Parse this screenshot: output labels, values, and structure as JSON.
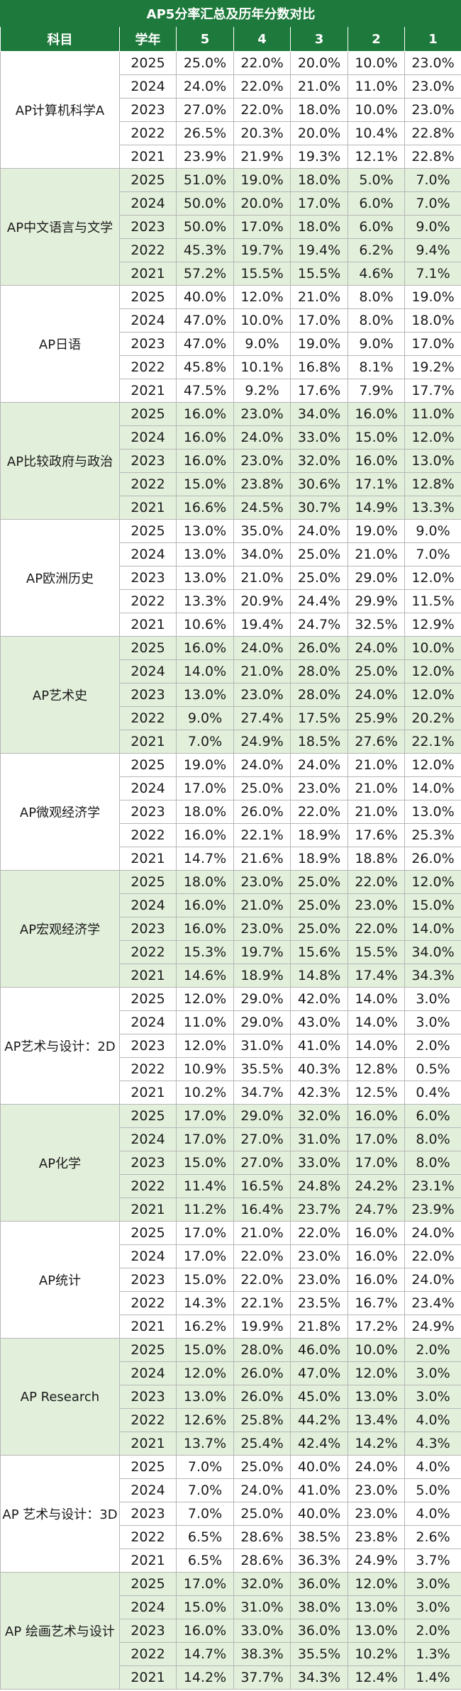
{
  "title": "AP5分率汇总及历年分数对比",
  "headers": [
    "科目",
    "学年",
    "5",
    "4",
    "3",
    "2",
    "1"
  ],
  "colors": {
    "header_bg": "#1e7a3c",
    "header_text": "#ffffff",
    "band_green": "#e2efda",
    "band_white": "#ffffff",
    "grid": "#b7b7b7"
  },
  "subjects": [
    {
      "name": "AP计算机科学A",
      "rows": [
        [
          "2025",
          "25.0%",
          "22.0%",
          "20.0%",
          "10.0%",
          "23.0%"
        ],
        [
          "2024",
          "24.0%",
          "22.0%",
          "21.0%",
          "11.0%",
          "23.0%"
        ],
        [
          "2023",
          "27.0%",
          "22.0%",
          "18.0%",
          "10.0%",
          "23.0%"
        ],
        [
          "2022",
          "26.5%",
          "20.3%",
          "20.0%",
          "10.4%",
          "22.8%"
        ],
        [
          "2021",
          "23.9%",
          "21.9%",
          "19.3%",
          "12.1%",
          "22.8%"
        ]
      ]
    },
    {
      "name": "AP中文语言与文学",
      "rows": [
        [
          "2025",
          "51.0%",
          "19.0%",
          "18.0%",
          "5.0%",
          "7.0%"
        ],
        [
          "2024",
          "50.0%",
          "20.0%",
          "17.0%",
          "6.0%",
          "7.0%"
        ],
        [
          "2023",
          "50.0%",
          "17.0%",
          "18.0%",
          "6.0%",
          "9.0%"
        ],
        [
          "2022",
          "45.3%",
          "19.7%",
          "19.4%",
          "6.2%",
          "9.4%"
        ],
        [
          "2021",
          "57.2%",
          "15.5%",
          "15.5%",
          "4.6%",
          "7.1%"
        ]
      ]
    },
    {
      "name": "AP日语",
      "rows": [
        [
          "2025",
          "40.0%",
          "12.0%",
          "21.0%",
          "8.0%",
          "19.0%"
        ],
        [
          "2024",
          "47.0%",
          "10.0%",
          "17.0%",
          "8.0%",
          "18.0%"
        ],
        [
          "2023",
          "47.0%",
          "9.0%",
          "19.0%",
          "9.0%",
          "17.0%"
        ],
        [
          "2022",
          "45.8%",
          "10.1%",
          "16.8%",
          "8.1%",
          "19.2%"
        ],
        [
          "2021",
          "47.5%",
          "9.2%",
          "17.6%",
          "7.9%",
          "17.7%"
        ]
      ]
    },
    {
      "name": "AP比较政府与政治",
      "rows": [
        [
          "2025",
          "16.0%",
          "23.0%",
          "34.0%",
          "16.0%",
          "11.0%"
        ],
        [
          "2024",
          "16.0%",
          "24.0%",
          "33.0%",
          "15.0%",
          "12.0%"
        ],
        [
          "2023",
          "16.0%",
          "23.0%",
          "32.0%",
          "16.0%",
          "13.0%"
        ],
        [
          "2022",
          "15.0%",
          "23.8%",
          "30.6%",
          "17.1%",
          "12.8%"
        ],
        [
          "2021",
          "16.6%",
          "24.5%",
          "30.7%",
          "14.9%",
          "13.3%"
        ]
      ]
    },
    {
      "name": "AP欧洲历史",
      "rows": [
        [
          "2025",
          "13.0%",
          "35.0%",
          "24.0%",
          "19.0%",
          "9.0%"
        ],
        [
          "2024",
          "13.0%",
          "34.0%",
          "25.0%",
          "21.0%",
          "7.0%"
        ],
        [
          "2023",
          "13.0%",
          "21.0%",
          "25.0%",
          "29.0%",
          "12.0%"
        ],
        [
          "2022",
          "13.3%",
          "20.9%",
          "24.4%",
          "29.9%",
          "11.5%"
        ],
        [
          "2021",
          "10.6%",
          "19.4%",
          "24.7%",
          "32.5%",
          "12.9%"
        ]
      ]
    },
    {
      "name": "AP艺术史",
      "rows": [
        [
          "2025",
          "16.0%",
          "24.0%",
          "26.0%",
          "24.0%",
          "10.0%"
        ],
        [
          "2024",
          "14.0%",
          "21.0%",
          "28.0%",
          "25.0%",
          "12.0%"
        ],
        [
          "2023",
          "13.0%",
          "23.0%",
          "28.0%",
          "24.0%",
          "12.0%"
        ],
        [
          "2022",
          "9.0%",
          "27.4%",
          "17.5%",
          "25.9%",
          "20.2%"
        ],
        [
          "2021",
          "7.0%",
          "24.9%",
          "18.5%",
          "27.6%",
          "22.1%"
        ]
      ]
    },
    {
      "name": "AP微观经济学",
      "rows": [
        [
          "2025",
          "19.0%",
          "24.0%",
          "24.0%",
          "21.0%",
          "12.0%"
        ],
        [
          "2024",
          "17.0%",
          "25.0%",
          "23.0%",
          "21.0%",
          "14.0%"
        ],
        [
          "2023",
          "18.0%",
          "26.0%",
          "22.0%",
          "21.0%",
          "13.0%"
        ],
        [
          "2022",
          "16.0%",
          "22.1%",
          "18.9%",
          "17.6%",
          "25.3%"
        ],
        [
          "2021",
          "14.7%",
          "21.6%",
          "18.9%",
          "18.8%",
          "26.0%"
        ]
      ]
    },
    {
      "name": "AP宏观经济学",
      "rows": [
        [
          "2025",
          "18.0%",
          "23.0%",
          "25.0%",
          "22.0%",
          "12.0%"
        ],
        [
          "2024",
          "16.0%",
          "21.0%",
          "25.0%",
          "23.0%",
          "15.0%"
        ],
        [
          "2023",
          "16.0%",
          "23.0%",
          "25.0%",
          "22.0%",
          "14.0%"
        ],
        [
          "2022",
          "15.3%",
          "19.7%",
          "15.6%",
          "15.5%",
          "34.0%"
        ],
        [
          "2021",
          "14.6%",
          "18.9%",
          "14.8%",
          "17.4%",
          "34.3%"
        ]
      ]
    },
    {
      "name": "AP艺术与设计：2D",
      "rows": [
        [
          "2025",
          "12.0%",
          "29.0%",
          "42.0%",
          "14.0%",
          "3.0%"
        ],
        [
          "2024",
          "11.0%",
          "29.0%",
          "43.0%",
          "14.0%",
          "3.0%"
        ],
        [
          "2023",
          "12.0%",
          "31.0%",
          "41.0%",
          "14.0%",
          "2.0%"
        ],
        [
          "2022",
          "10.9%",
          "35.5%",
          "40.3%",
          "12.8%",
          "0.5%"
        ],
        [
          "2021",
          "10.2%",
          "34.7%",
          "42.3%",
          "12.5%",
          "0.4%"
        ]
      ]
    },
    {
      "name": "AP化学",
      "rows": [
        [
          "2025",
          "17.0%",
          "29.0%",
          "32.0%",
          "16.0%",
          "6.0%"
        ],
        [
          "2024",
          "17.0%",
          "27.0%",
          "31.0%",
          "17.0%",
          "8.0%"
        ],
        [
          "2023",
          "15.0%",
          "27.0%",
          "33.0%",
          "17.0%",
          "8.0%"
        ],
        [
          "2022",
          "11.4%",
          "16.5%",
          "24.8%",
          "24.2%",
          "23.1%"
        ],
        [
          "2021",
          "11.2%",
          "16.4%",
          "23.7%",
          "24.7%",
          "23.9%"
        ]
      ]
    },
    {
      "name": "AP统计",
      "rows": [
        [
          "2025",
          "17.0%",
          "21.0%",
          "22.0%",
          "16.0%",
          "24.0%"
        ],
        [
          "2024",
          "17.0%",
          "22.0%",
          "23.0%",
          "16.0%",
          "22.0%"
        ],
        [
          "2023",
          "15.0%",
          "22.0%",
          "23.0%",
          "16.0%",
          "24.0%"
        ],
        [
          "2022",
          "14.3%",
          "22.1%",
          "23.5%",
          "16.7%",
          "23.4%"
        ],
        [
          "2021",
          "16.2%",
          "19.9%",
          "21.8%",
          "17.2%",
          "24.9%"
        ]
      ]
    },
    {
      "name": "AP Research",
      "rows": [
        [
          "2025",
          "15.0%",
          "28.0%",
          "46.0%",
          "10.0%",
          "2.0%"
        ],
        [
          "2024",
          "12.0%",
          "26.0%",
          "47.0%",
          "12.0%",
          "3.0%"
        ],
        [
          "2023",
          "13.0%",
          "26.0%",
          "45.0%",
          "13.0%",
          "3.0%"
        ],
        [
          "2022",
          "12.6%",
          "25.8%",
          "44.2%",
          "13.4%",
          "4.0%"
        ],
        [
          "2021",
          "13.7%",
          "25.4%",
          "42.4%",
          "14.2%",
          "4.3%"
        ]
      ]
    },
    {
      "name": "AP 艺术与设计：3D",
      "rows": [
        [
          "2025",
          "7.0%",
          "25.0%",
          "40.0%",
          "24.0%",
          "4.0%"
        ],
        [
          "2024",
          "7.0%",
          "24.0%",
          "41.0%",
          "23.0%",
          "5.0%"
        ],
        [
          "2023",
          "7.0%",
          "25.0%",
          "40.0%",
          "23.0%",
          "4.0%"
        ],
        [
          "2022",
          "6.5%",
          "28.6%",
          "38.5%",
          "23.8%",
          "2.6%"
        ],
        [
          "2021",
          "6.5%",
          "28.6%",
          "36.3%",
          "24.9%",
          "3.7%"
        ]
      ]
    },
    {
      "name": "AP 绘画艺术与设计",
      "rows": [
        [
          "2025",
          "17.0%",
          "32.0%",
          "36.0%",
          "12.0%",
          "3.0%"
        ],
        [
          "2024",
          "15.0%",
          "31.0%",
          "38.0%",
          "13.0%",
          "3.0%"
        ],
        [
          "2023",
          "16.0%",
          "33.0%",
          "36.0%",
          "13.0%",
          "2.0%"
        ],
        [
          "2022",
          "14.7%",
          "38.3%",
          "35.5%",
          "10.2%",
          "1.3%"
        ],
        [
          "2021",
          "14.2%",
          "37.7%",
          "34.3%",
          "12.4%",
          "1.4%"
        ]
      ]
    }
  ]
}
